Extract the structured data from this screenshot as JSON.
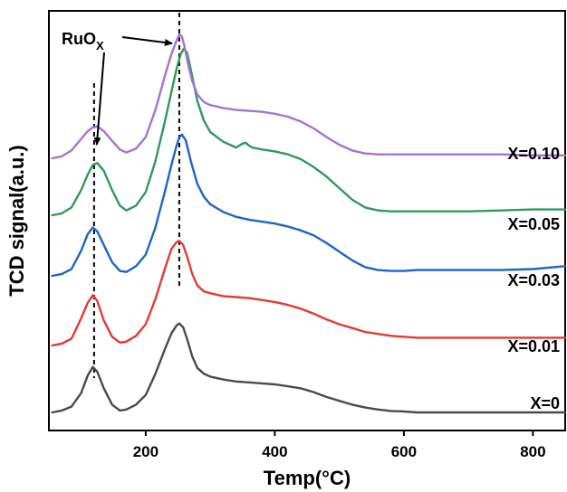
{
  "chart_data": {
    "type": "line",
    "title": "",
    "xlabel": "Temp(°C)",
    "ylabel": "TCD signal(a.u.)",
    "xlim": [
      50,
      850
    ],
    "x_ticks": [
      200,
      400,
      600,
      800
    ],
    "y_ticks_shown": false,
    "grid": false,
    "legend": "labels at right end of each curve",
    "annotation": {
      "text_main": "RuO",
      "text_sub": "X",
      "points_to_peaks_c": [
        120,
        252
      ]
    },
    "reference_lines_c": [
      120,
      252
    ],
    "series": [
      {
        "name": "X=0",
        "color": "#4a4a4a",
        "x": [
          55,
          70,
          85,
          100,
          110,
          118,
          125,
          135,
          148,
          160,
          170,
          185,
          200,
          215,
          230,
          240,
          248,
          252,
          258,
          265,
          272,
          280,
          290,
          300,
          320,
          340,
          360,
          380,
          400,
          420,
          440,
          460,
          480,
          500,
          520,
          540,
          560,
          580,
          600,
          620,
          650,
          700,
          750,
          800,
          850
        ],
        "y": [
          0.0,
          0.02,
          0.06,
          0.2,
          0.38,
          0.47,
          0.42,
          0.25,
          0.08,
          0.02,
          0.03,
          0.08,
          0.18,
          0.4,
          0.66,
          0.82,
          0.9,
          0.92,
          0.88,
          0.74,
          0.58,
          0.46,
          0.4,
          0.37,
          0.34,
          0.32,
          0.31,
          0.3,
          0.29,
          0.27,
          0.25,
          0.21,
          0.16,
          0.12,
          0.08,
          0.05,
          0.03,
          0.015,
          0.01,
          0.0,
          0.0,
          0.0,
          0.0,
          0.0,
          0.0
        ]
      },
      {
        "name": "X=0.01",
        "color": "#e53935",
        "x": [
          55,
          70,
          85,
          100,
          110,
          118,
          125,
          135,
          148,
          160,
          170,
          185,
          200,
          215,
          230,
          240,
          248,
          252,
          258,
          265,
          272,
          280,
          290,
          300,
          320,
          340,
          360,
          380,
          400,
          420,
          440,
          460,
          480,
          500,
          520,
          540,
          560,
          580,
          600,
          620,
          650,
          700,
          750,
          800,
          850
        ],
        "y": [
          0.0,
          0.02,
          0.07,
          0.28,
          0.44,
          0.52,
          0.46,
          0.26,
          0.09,
          0.03,
          0.04,
          0.1,
          0.22,
          0.48,
          0.8,
          1.0,
          1.07,
          1.08,
          1.04,
          0.9,
          0.74,
          0.62,
          0.56,
          0.54,
          0.51,
          0.5,
          0.49,
          0.47,
          0.45,
          0.42,
          0.38,
          0.33,
          0.27,
          0.22,
          0.18,
          0.14,
          0.12,
          0.1,
          0.09,
          0.08,
          0.08,
          0.08,
          0.08,
          0.08,
          0.08
        ]
      },
      {
        "name": "X=0.03",
        "color": "#1e64c8",
        "x": [
          55,
          70,
          85,
          100,
          110,
          118,
          125,
          135,
          148,
          160,
          170,
          185,
          200,
          215,
          230,
          240,
          248,
          252,
          256,
          262,
          270,
          280,
          290,
          300,
          320,
          340,
          360,
          380,
          400,
          420,
          440,
          460,
          480,
          500,
          520,
          540,
          560,
          580,
          600,
          620,
          650,
          700,
          750,
          800,
          850
        ],
        "y": [
          0.0,
          0.02,
          0.07,
          0.26,
          0.43,
          0.5,
          0.46,
          0.32,
          0.14,
          0.05,
          0.04,
          0.1,
          0.22,
          0.5,
          0.88,
          1.15,
          1.35,
          1.43,
          1.46,
          1.4,
          1.18,
          0.95,
          0.82,
          0.74,
          0.66,
          0.61,
          0.58,
          0.56,
          0.54,
          0.51,
          0.47,
          0.42,
          0.34,
          0.25,
          0.16,
          0.09,
          0.06,
          0.05,
          0.05,
          0.06,
          0.06,
          0.06,
          0.06,
          0.07,
          0.1
        ]
      },
      {
        "name": "X=0.05",
        "color": "#2e9a5c",
        "x": [
          55,
          70,
          85,
          100,
          110,
          118,
          125,
          135,
          148,
          160,
          170,
          185,
          200,
          215,
          230,
          240,
          248,
          254,
          259,
          264,
          270,
          280,
          290,
          300,
          320,
          340,
          350,
          355,
          360,
          365,
          380,
          400,
          420,
          440,
          460,
          480,
          500,
          520,
          540,
          560,
          580,
          600,
          620,
          650,
          700,
          750,
          800,
          850
        ],
        "y": [
          0.0,
          0.02,
          0.08,
          0.26,
          0.42,
          0.52,
          0.54,
          0.46,
          0.26,
          0.1,
          0.05,
          0.1,
          0.24,
          0.56,
          0.98,
          1.28,
          1.52,
          1.66,
          1.72,
          1.68,
          1.5,
          1.18,
          0.98,
          0.86,
          0.76,
          0.7,
          0.74,
          0.75,
          0.72,
          0.7,
          0.68,
          0.66,
          0.63,
          0.58,
          0.5,
          0.4,
          0.28,
          0.16,
          0.08,
          0.05,
          0.04,
          0.04,
          0.04,
          0.04,
          0.04,
          0.05,
          0.06,
          0.06
        ]
      },
      {
        "name": "X=0.10",
        "color": "#a374d8",
        "x": [
          55,
          70,
          85,
          100,
          110,
          118,
          125,
          135,
          148,
          160,
          170,
          185,
          200,
          215,
          230,
          240,
          248,
          252,
          256,
          260,
          266,
          272,
          280,
          290,
          300,
          320,
          340,
          360,
          380,
          400,
          420,
          440,
          460,
          480,
          500,
          520,
          540,
          560,
          580,
          600,
          620,
          650,
          700,
          750,
          800,
          850
        ],
        "y": [
          0.0,
          0.02,
          0.08,
          0.2,
          0.28,
          0.32,
          0.33,
          0.28,
          0.18,
          0.09,
          0.06,
          0.1,
          0.22,
          0.5,
          0.86,
          1.08,
          1.22,
          1.28,
          1.26,
          1.16,
          0.96,
          0.8,
          0.66,
          0.58,
          0.55,
          0.52,
          0.5,
          0.49,
          0.48,
          0.46,
          0.43,
          0.38,
          0.31,
          0.22,
          0.14,
          0.08,
          0.05,
          0.04,
          0.04,
          0.04,
          0.04,
          0.04,
          0.04,
          0.04,
          0.03,
          0.03
        ]
      }
    ]
  }
}
